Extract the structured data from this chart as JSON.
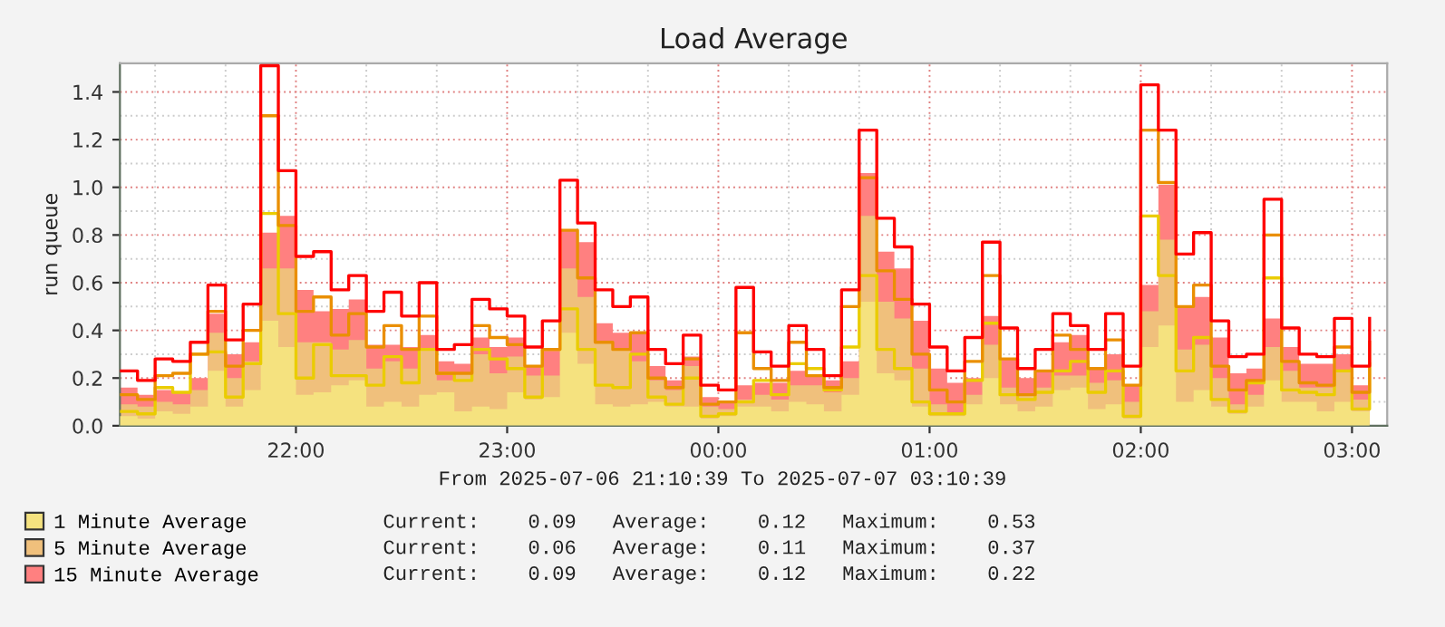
{
  "chart_data": {
    "type": "area",
    "title": "Load Average",
    "ylabel": "run queue",
    "x": [
      "2025-07-06T21:10",
      "2025-07-06T21:15",
      "2025-07-06T21:20",
      "2025-07-06T21:25",
      "2025-07-06T21:30",
      "2025-07-06T21:35",
      "2025-07-06T21:40",
      "2025-07-06T21:45",
      "2025-07-06T21:50",
      "2025-07-06T21:55",
      "2025-07-06T22:00",
      "2025-07-06T22:05",
      "2025-07-06T22:10",
      "2025-07-06T22:15",
      "2025-07-06T22:20",
      "2025-07-06T22:25",
      "2025-07-06T22:30",
      "2025-07-06T22:35",
      "2025-07-06T22:40",
      "2025-07-06T22:45",
      "2025-07-06T22:50",
      "2025-07-06T22:55",
      "2025-07-06T23:00",
      "2025-07-06T23:05",
      "2025-07-06T23:10",
      "2025-07-06T23:15",
      "2025-07-06T23:20",
      "2025-07-06T23:25",
      "2025-07-06T23:30",
      "2025-07-06T23:35",
      "2025-07-06T23:40",
      "2025-07-06T23:45",
      "2025-07-06T23:50",
      "2025-07-06T23:55",
      "2025-07-07T00:00",
      "2025-07-07T00:05",
      "2025-07-07T00:10",
      "2025-07-07T00:15",
      "2025-07-07T00:20",
      "2025-07-07T00:25",
      "2025-07-07T00:30",
      "2025-07-07T00:35",
      "2025-07-07T00:40",
      "2025-07-07T00:45",
      "2025-07-07T00:50",
      "2025-07-07T00:55",
      "2025-07-07T01:00",
      "2025-07-07T01:05",
      "2025-07-07T01:10",
      "2025-07-07T01:15",
      "2025-07-07T01:20",
      "2025-07-07T01:25",
      "2025-07-07T01:30",
      "2025-07-07T01:35",
      "2025-07-07T01:40",
      "2025-07-07T01:45",
      "2025-07-07T01:50",
      "2025-07-07T01:55",
      "2025-07-07T02:00",
      "2025-07-07T02:05",
      "2025-07-07T02:10",
      "2025-07-07T02:15",
      "2025-07-07T02:20",
      "2025-07-07T02:25",
      "2025-07-07T02:30",
      "2025-07-07T02:35",
      "2025-07-07T02:40",
      "2025-07-07T02:45",
      "2025-07-07T02:50",
      "2025-07-07T02:55",
      "2025-07-07T03:00",
      "2025-07-07T03:05"
    ],
    "series": [
      {
        "name": "1 Minute Average",
        "color": "#f5e27f",
        "values": [
          0.04,
          0.03,
          0.06,
          0.05,
          0.08,
          0.23,
          0.08,
          0.15,
          0.44,
          0.33,
          0.13,
          0.14,
          0.17,
          0.19,
          0.08,
          0.1,
          0.08,
          0.13,
          0.14,
          0.06,
          0.08,
          0.07,
          0.14,
          0.11,
          0.12,
          0.39,
          0.26,
          0.09,
          0.08,
          0.09,
          0.1,
          0.08,
          0.08,
          0.03,
          0.04,
          0.08,
          0.08,
          0.06,
          0.1,
          0.09,
          0.06,
          0.13,
          0.52,
          0.22,
          0.19,
          0.08,
          0.04,
          0.04,
          0.09,
          0.2,
          0.09,
          0.06,
          0.08,
          0.15,
          0.16,
          0.07,
          0.09,
          0.03,
          0.33,
          0.42,
          0.1,
          0.15,
          0.08,
          0.05,
          0.08,
          0.19,
          0.1,
          0.1,
          0.06,
          0.1,
          0.06,
          0.1
        ]
      },
      {
        "name": "5 Minute Average",
        "color": "#f0c07c",
        "values": [
          0.09,
          0.08,
          0.1,
          0.09,
          0.15,
          0.39,
          0.2,
          0.27,
          0.66,
          0.66,
          0.35,
          0.35,
          0.32,
          0.36,
          0.24,
          0.27,
          0.24,
          0.32,
          0.19,
          0.22,
          0.3,
          0.22,
          0.29,
          0.21,
          0.21,
          0.66,
          0.54,
          0.35,
          0.32,
          0.27,
          0.19,
          0.15,
          0.25,
          0.08,
          0.07,
          0.11,
          0.13,
          0.11,
          0.17,
          0.17,
          0.14,
          0.2,
          0.88,
          0.52,
          0.45,
          0.24,
          0.09,
          0.05,
          0.13,
          0.34,
          0.16,
          0.13,
          0.16,
          0.21,
          0.21,
          0.18,
          0.19,
          0.1,
          0.48,
          0.78,
          0.32,
          0.34,
          0.2,
          0.09,
          0.13,
          0.33,
          0.23,
          0.16,
          0.16,
          0.23,
          0.11,
          0.16
        ]
      },
      {
        "name": "15 Minute Average",
        "color": "#ff8080",
        "values": [
          0.16,
          0.13,
          0.15,
          0.14,
          0.2,
          0.47,
          0.3,
          0.35,
          0.81,
          0.88,
          0.57,
          0.48,
          0.49,
          0.53,
          0.34,
          0.34,
          0.33,
          0.38,
          0.27,
          0.26,
          0.37,
          0.33,
          0.37,
          0.25,
          0.32,
          0.82,
          0.77,
          0.43,
          0.39,
          0.39,
          0.25,
          0.19,
          0.29,
          0.12,
          0.1,
          0.17,
          0.18,
          0.18,
          0.23,
          0.21,
          0.19,
          0.27,
          1.06,
          0.73,
          0.66,
          0.44,
          0.24,
          0.18,
          0.2,
          0.46,
          0.28,
          0.2,
          0.23,
          0.35,
          0.38,
          0.24,
          0.3,
          0.17,
          0.59,
          1.01,
          0.5,
          0.54,
          0.37,
          0.22,
          0.24,
          0.45,
          0.33,
          0.26,
          0.26,
          0.3,
          0.17,
          0.24
        ]
      },
      {
        "type": "step",
        "color": "#eacc00",
        "values": [
          0.06,
          0.05,
          0.16,
          0.14,
          0.3,
          0.31,
          0.12,
          0.26,
          0.89,
          0.47,
          0.2,
          0.34,
          0.21,
          0.21,
          0.17,
          0.29,
          0.18,
          0.32,
          0.22,
          0.19,
          0.32,
          0.28,
          0.24,
          0.12,
          0.32,
          0.49,
          0.32,
          0.17,
          0.16,
          0.3,
          0.12,
          0.09,
          0.2,
          0.04,
          0.05,
          0.1,
          0.19,
          0.13,
          0.26,
          0.24,
          0.15,
          0.33,
          0.63,
          0.32,
          0.24,
          0.1,
          0.05,
          0.05,
          0.19,
          0.43,
          0.13,
          0.11,
          0.14,
          0.23,
          0.27,
          0.14,
          0.23,
          0.04,
          0.88,
          0.63,
          0.23,
          0.37,
          0.11,
          0.06,
          0.18,
          0.62,
          0.15,
          0.14,
          0.13,
          0.23,
          0.07,
          0.26
        ]
      },
      {
        "type": "step",
        "color": "#ea8f00",
        "values": [
          0.13,
          0.11,
          0.21,
          0.22,
          0.3,
          0.48,
          0.25,
          0.4,
          1.3,
          0.84,
          0.48,
          0.54,
          0.38,
          0.47,
          0.33,
          0.42,
          0.32,
          0.46,
          0.22,
          0.22,
          0.42,
          0.37,
          0.34,
          0.25,
          0.32,
          0.82,
          0.62,
          0.35,
          0.32,
          0.39,
          0.2,
          0.16,
          0.28,
          0.09,
          0.1,
          0.39,
          0.24,
          0.19,
          0.35,
          0.21,
          0.16,
          0.5,
          1.04,
          0.65,
          0.53,
          0.3,
          0.15,
          0.1,
          0.27,
          0.63,
          0.28,
          0.13,
          0.23,
          0.38,
          0.32,
          0.24,
          0.36,
          0.17,
          1.24,
          1.02,
          0.5,
          0.59,
          0.25,
          0.15,
          0.19,
          0.8,
          0.27,
          0.18,
          0.17,
          0.33,
          0.14,
          0.35
        ]
      },
      {
        "type": "step",
        "color": "#ff0000",
        "values": [
          0.23,
          0.19,
          0.28,
          0.27,
          0.35,
          0.59,
          0.36,
          0.51,
          1.51,
          1.07,
          0.71,
          0.73,
          0.57,
          0.63,
          0.48,
          0.56,
          0.46,
          0.6,
          0.32,
          0.34,
          0.53,
          0.49,
          0.46,
          0.33,
          0.44,
          1.03,
          0.85,
          0.57,
          0.5,
          0.54,
          0.32,
          0.26,
          0.38,
          0.17,
          0.15,
          0.58,
          0.31,
          0.25,
          0.42,
          0.32,
          0.21,
          0.57,
          1.24,
          0.87,
          0.75,
          0.51,
          0.33,
          0.23,
          0.37,
          0.77,
          0.41,
          0.24,
          0.32,
          0.47,
          0.42,
          0.32,
          0.47,
          0.25,
          1.43,
          1.24,
          0.72,
          0.81,
          0.44,
          0.29,
          0.3,
          0.95,
          0.41,
          0.3,
          0.29,
          0.45,
          0.25,
          0.45
        ]
      }
    ],
    "xlim": [
      "2025-07-06T21:10",
      "2025-07-07T03:10"
    ],
    "xticks": [
      {
        "value": "2025-07-06T22:00",
        "label": "22:00"
      },
      {
        "value": "2025-07-06T23:00",
        "label": "23:00"
      },
      {
        "value": "2025-07-07T00:00",
        "label": "00:00"
      },
      {
        "value": "2025-07-07T01:00",
        "label": "01:00"
      },
      {
        "value": "2025-07-07T02:00",
        "label": "02:00"
      },
      {
        "value": "2025-07-07T03:00",
        "label": "03:00"
      }
    ],
    "ylim": [
      0,
      1.52
    ],
    "yticks": [
      {
        "value": 0,
        "label": "0.0"
      },
      {
        "value": 0.2,
        "label": "0.2"
      },
      {
        "value": 0.4,
        "label": "0.4"
      },
      {
        "value": 0.6,
        "label": "0.6"
      },
      {
        "value": 0.8,
        "label": "0.8"
      },
      {
        "value": 1.0,
        "label": "1.0"
      },
      {
        "value": 1.2,
        "label": "1.2"
      },
      {
        "value": 1.4,
        "label": "1.4"
      }
    ],
    "grid": true,
    "legend": "bottom left",
    "annotations": [
      "From 2025-07-06 21:10:39 To 2025-07-07 03:10:39",
      "Current:    0.09   Average:    0.12   Maximum:    0.53",
      "Current:    0.06   Average:    0.11   Maximum:    0.37",
      "Current:    0.09   Average:    0.12   Maximum:    0.22"
    ]
  }
}
